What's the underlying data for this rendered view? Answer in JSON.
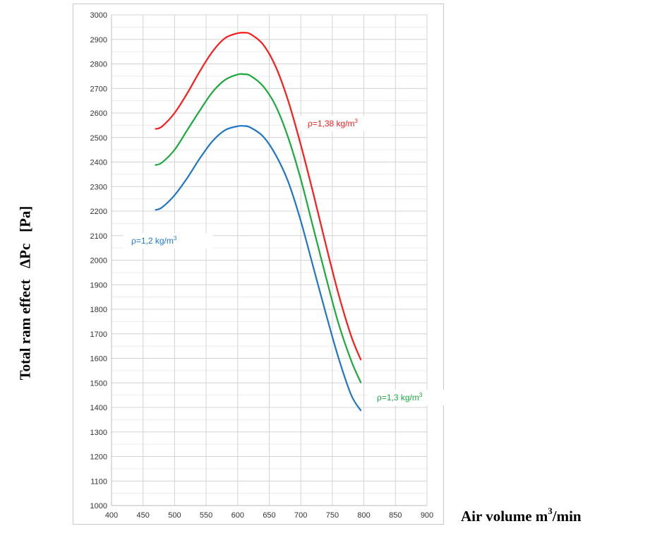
{
  "chart_data": {
    "type": "line",
    "xlabel": "Air volume m",
    "xlabel_sup": "3",
    "xlabel_tail": "/min",
    "ylabel": "Total ram effect   ΔPc   [Pa]",
    "xlim": [
      400,
      900
    ],
    "ylim": [
      1000,
      3000
    ],
    "x_ticks": [
      400,
      450,
      500,
      550,
      600,
      650,
      700,
      750,
      800,
      850,
      900
    ],
    "y_ticks": [
      1000,
      1100,
      1200,
      1300,
      1400,
      1500,
      1600,
      1700,
      1800,
      1900,
      2000,
      2100,
      2200,
      2300,
      2400,
      2500,
      2600,
      2700,
      2800,
      2900,
      3000
    ],
    "grid": true,
    "series": [
      {
        "name": "ρ=1,38 kg/m",
        "name_sup": "3",
        "color": "#ff1a1a",
        "x": [
          470,
          480,
          500,
          520,
          540,
          560,
          580,
          600,
          610,
          620,
          640,
          660,
          680,
          700,
          720,
          740,
          760,
          780,
          795
        ],
        "y": [
          2535,
          2545,
          2600,
          2680,
          2770,
          2850,
          2905,
          2925,
          2927,
          2922,
          2880,
          2790,
          2650,
          2470,
          2270,
          2060,
          1860,
          1690,
          1595
        ]
      },
      {
        "name": "ρ=1,3 kg/m",
        "name_sup": "3",
        "color": "#1aaa3c",
        "x": [
          470,
          480,
          500,
          520,
          540,
          560,
          580,
          600,
          610,
          620,
          640,
          660,
          680,
          700,
          720,
          740,
          760,
          780,
          795
        ],
        "y": [
          2388,
          2398,
          2450,
          2530,
          2610,
          2685,
          2735,
          2757,
          2758,
          2752,
          2710,
          2630,
          2500,
          2330,
          2130,
          1930,
          1740,
          1590,
          1502
        ]
      },
      {
        "name": "ρ=1,2 kg/m",
        "name_sup": "3",
        "color": "#1f77c4",
        "x": [
          470,
          480,
          500,
          520,
          540,
          560,
          580,
          600,
          610,
          620,
          640,
          660,
          680,
          700,
          720,
          740,
          760,
          780,
          795
        ],
        "y": [
          2205,
          2215,
          2265,
          2335,
          2415,
          2485,
          2530,
          2546,
          2547,
          2541,
          2505,
          2430,
          2320,
          2160,
          1970,
          1780,
          1600,
          1450,
          1388
        ]
      }
    ]
  }
}
